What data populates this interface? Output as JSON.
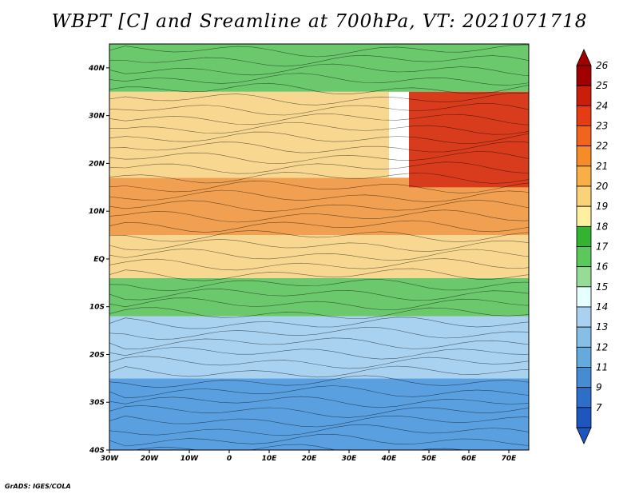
{
  "title": "WBPT [C] and Sreamline at 700hPa, VT: 2021071718",
  "credit": "GrADS: IGES/COLA",
  "map": {
    "lon_range": [
      -30,
      75
    ],
    "lat_range": [
      -40,
      45
    ],
    "lon_ticks": [
      {
        "value": -30,
        "label": "30W"
      },
      {
        "value": -20,
        "label": "20W"
      },
      {
        "value": -10,
        "label": "10W"
      },
      {
        "value": 0,
        "label": "0"
      },
      {
        "value": 10,
        "label": "10E"
      },
      {
        "value": 20,
        "label": "20E"
      },
      {
        "value": 30,
        "label": "30E"
      },
      {
        "value": 40,
        "label": "40E"
      },
      {
        "value": 50,
        "label": "50E"
      },
      {
        "value": 60,
        "label": "60E"
      },
      {
        "value": 70,
        "label": "70E"
      }
    ],
    "lat_ticks": [
      {
        "value": 40,
        "label": "40N"
      },
      {
        "value": 30,
        "label": "30N"
      },
      {
        "value": 20,
        "label": "20N"
      },
      {
        "value": 10,
        "label": "10N"
      },
      {
        "value": 0,
        "label": "EQ"
      },
      {
        "value": -10,
        "label": "10S"
      },
      {
        "value": -20,
        "label": "20S"
      },
      {
        "value": -30,
        "label": "30S"
      },
      {
        "value": -40,
        "label": "40S"
      }
    ],
    "field_regions": [
      {
        "name": "south-cool",
        "color": "#5aa0e0",
        "lon": [
          -30,
          75
        ],
        "lat": [
          -40,
          -25
        ]
      },
      {
        "name": "south-mid",
        "color": "#a8d2f0",
        "lon": [
          -30,
          75
        ],
        "lat": [
          -25,
          -12
        ]
      },
      {
        "name": "tropic-green",
        "color": "#6cc86c",
        "lon": [
          -30,
          75
        ],
        "lat": [
          -12,
          -4
        ]
      },
      {
        "name": "equatorial",
        "color": "#f8d890",
        "lon": [
          -30,
          75
        ],
        "lat": [
          -4,
          5
        ]
      },
      {
        "name": "sahel-warm",
        "color": "#f0a050",
        "lon": [
          -30,
          75
        ],
        "lat": [
          5,
          17
        ]
      },
      {
        "name": "sahara",
        "color": "#f8d890",
        "lon": [
          -30,
          40
        ],
        "lat": [
          17,
          35
        ]
      },
      {
        "name": "mediterranean",
        "color": "#6cc86c",
        "lon": [
          -30,
          75
        ],
        "lat": [
          35,
          45
        ]
      },
      {
        "name": "arabian-hot",
        "color": "#d83c1c",
        "lon": [
          45,
          75
        ],
        "lat": [
          15,
          35
        ]
      }
    ]
  },
  "colorbar": {
    "levels": [
      "26",
      "25",
      "24",
      "23",
      "22",
      "21",
      "20",
      "19",
      "18",
      "17",
      "16",
      "15",
      "14",
      "13",
      "12",
      "11",
      "9",
      "7"
    ],
    "colors": [
      "#a00000",
      "#c81e0a",
      "#e63c14",
      "#f0641e",
      "#f58c28",
      "#f8b046",
      "#fad278",
      "#fff0a0",
      "#32b432",
      "#5ac85a",
      "#96dc96",
      "#e6ffff",
      "#aad2f0",
      "#87bee6",
      "#64aadc",
      "#468cd2",
      "#2d6ec8",
      "#1e55be"
    ]
  }
}
